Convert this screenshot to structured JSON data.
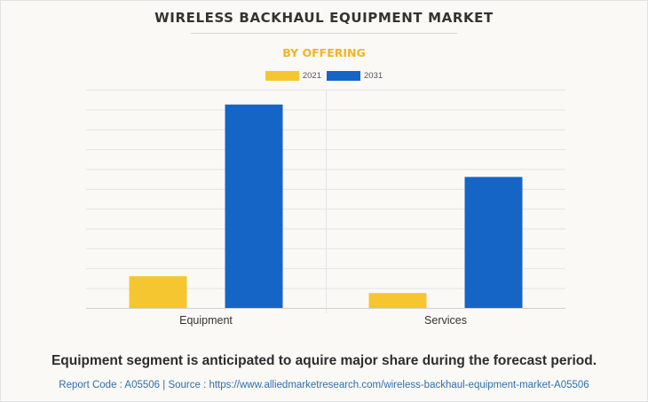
{
  "title": "WIRELESS BACKHAUL EQUIPMENT MARKET",
  "subtitle": "BY OFFERING",
  "caption": "Equipment segment is anticipated to aquire major share during the forecast period.",
  "source_line": "Report Code : A05506  |  Source : https://www.alliedmarketresearch.com/wireless-backhaul-equipment-market-A05506",
  "colors": {
    "series_2021": "#f6c630",
    "series_2031": "#1565c6",
    "subtitle": "#f5b324",
    "source": "#2f6fad"
  },
  "chart_data": {
    "type": "bar",
    "categories": [
      "Equipment",
      "Services"
    ],
    "series": [
      {
        "name": "2021",
        "color": "#f6c630",
        "values": [
          1.6,
          0.75
        ]
      },
      {
        "name": "2031",
        "color": "#1565c6",
        "values": [
          10.25,
          6.6
        ]
      }
    ],
    "ylim": [
      0,
      11
    ],
    "grid": true,
    "y_tick_labels_shown": false,
    "legend_position": "top-center",
    "xlabel": "",
    "ylabel": ""
  }
}
